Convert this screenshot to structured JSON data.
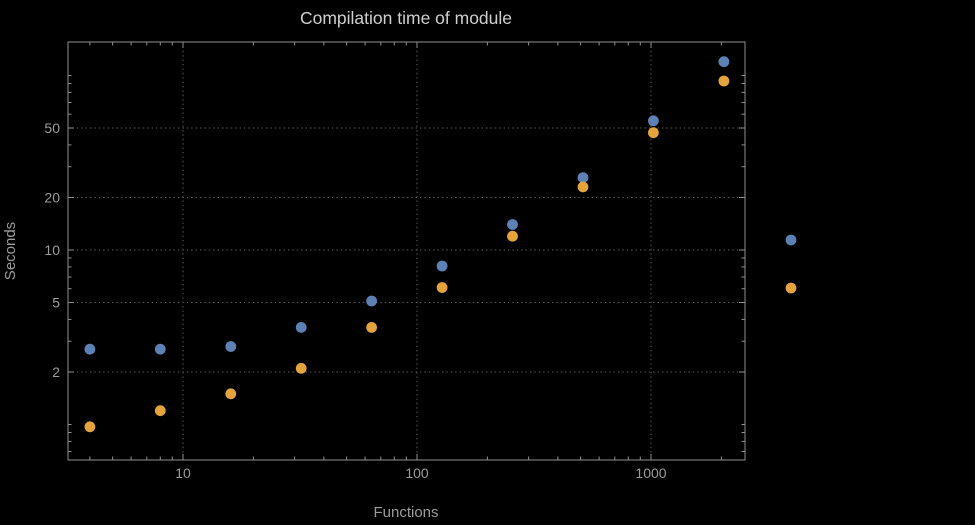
{
  "figure": {
    "background_color": "#000000",
    "frame_color": "#8f8f8f",
    "grid_color": "#5e5e5e",
    "title_color": "#cfcfcf",
    "axis_label_color": "#9c9c9c",
    "tick_label_color": "#9c9c9c"
  },
  "chart_data": {
    "type": "scatter",
    "title": "Compilation time of module",
    "xlabel": "Functions",
    "ylabel": "Seconds",
    "x_scale": "log",
    "y_scale": "log",
    "grid": "dotted lines at major ticks",
    "legend_position": "right-of-frame",
    "xlim": [
      3.2,
      2520
    ],
    "ylim": [
      0.63,
      156
    ],
    "x_ticks": [
      10,
      100,
      1000
    ],
    "y_ticks": [
      2,
      5,
      10,
      20,
      50
    ],
    "x": [
      4,
      8,
      16,
      32,
      64,
      128,
      256,
      512,
      1024,
      2048
    ],
    "series": [
      {
        "name": "blue",
        "color": "#5E81B5",
        "values": [
          2.7,
          2.7,
          2.8,
          3.6,
          5.1,
          8.1,
          14,
          26,
          55,
          120
        ]
      },
      {
        "name": "orange",
        "color": "#E5A33D",
        "values": [
          0.97,
          1.2,
          1.5,
          2.1,
          3.6,
          6.1,
          12,
          23,
          47,
          93
        ]
      }
    ],
    "legend_markers": [
      {
        "series": "blue",
        "color": "#5E81B5"
      },
      {
        "series": "orange",
        "color": "#E5A33D"
      }
    ]
  }
}
